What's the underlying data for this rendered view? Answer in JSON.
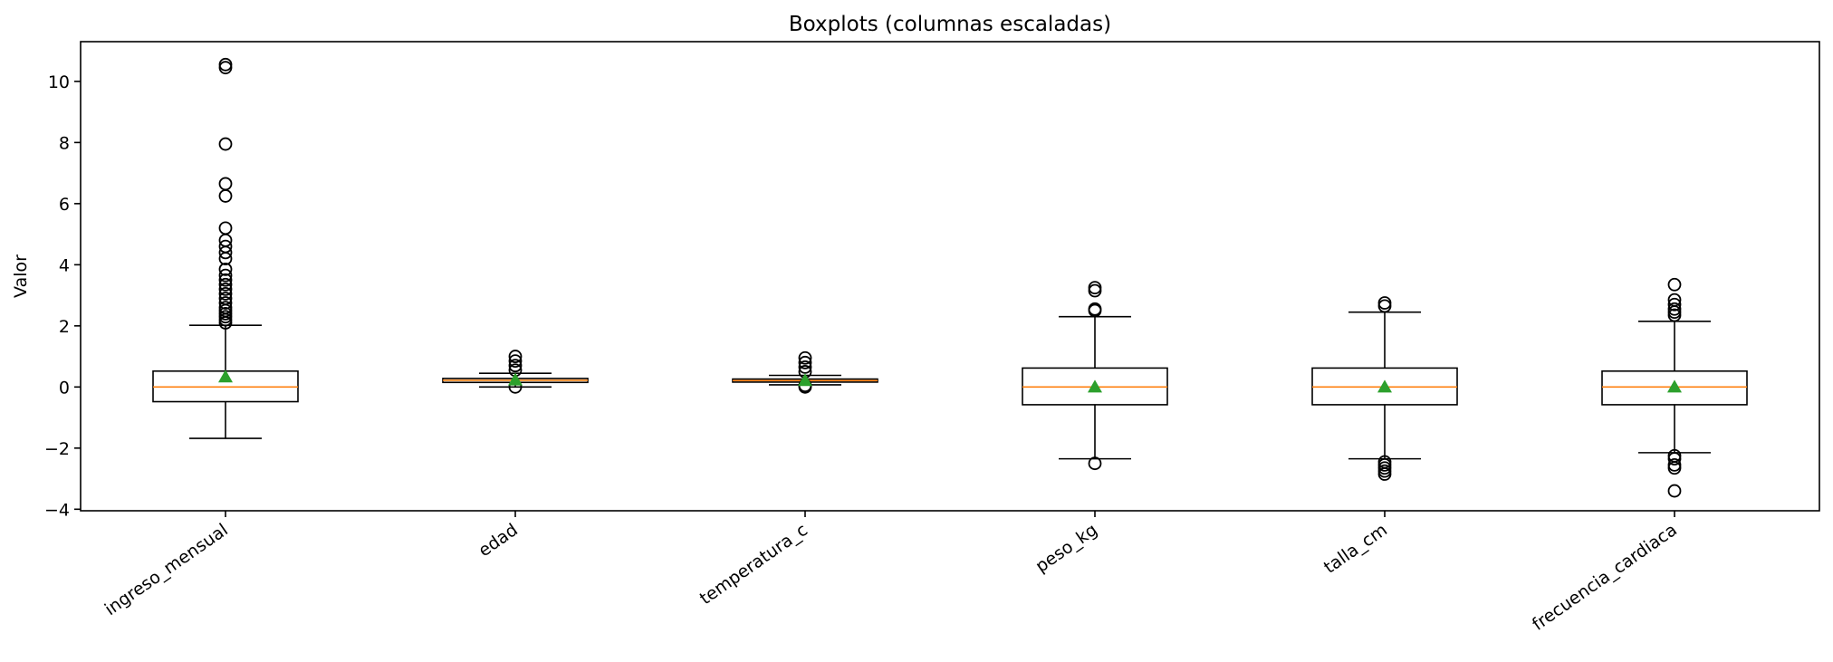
{
  "chart_data": {
    "type": "boxplot",
    "title": "Boxplots (columnas escaladas)",
    "xlabel": "",
    "ylabel": "Valor",
    "ylim": [
      -4.05,
      11.3
    ],
    "yticks": [
      -4,
      -2,
      0,
      2,
      4,
      6,
      8,
      10
    ],
    "ytick_labels": [
      "−4",
      "−2",
      "0",
      "2",
      "4",
      "6",
      "8",
      "10"
    ],
    "categories": [
      "ingreso_mensual",
      "edad",
      "temperatura_c",
      "peso_kg",
      "talla_cm",
      "frecuencia_cardiaca"
    ],
    "grid": false,
    "colors": {
      "box": "#000000",
      "median": "#ff7f0e",
      "mean": "#2ca02c",
      "flier": "#000000"
    },
    "boxes": [
      {
        "name": "ingreso_mensual",
        "whisker_low": -1.68,
        "q1": -0.48,
        "median": 0.0,
        "q3": 0.52,
        "whisker_high": 2.02,
        "mean": 0.33,
        "fliers": [
          2.1,
          2.2,
          2.3,
          2.4,
          2.5,
          2.6,
          2.75,
          2.9,
          3.05,
          3.2,
          3.35,
          3.5,
          3.65,
          3.85,
          4.2,
          4.4,
          4.6,
          4.8,
          5.2,
          6.25,
          6.65,
          7.95,
          10.45,
          10.55
        ]
      },
      {
        "name": "edad",
        "whisker_low": 0.0,
        "q1": 0.15,
        "median": 0.22,
        "q3": 0.28,
        "whisker_high": 0.45,
        "mean": 0.23,
        "fliers": [
          0.0,
          0.55,
          0.7,
          0.85,
          1.0
        ]
      },
      {
        "name": "temperatura_c",
        "whisker_low": 0.07,
        "q1": 0.16,
        "median": 0.21,
        "q3": 0.26,
        "whisker_high": 0.38,
        "mean": 0.21,
        "fliers": [
          0.0,
          0.05,
          0.5,
          0.65,
          0.8,
          0.95
        ]
      },
      {
        "name": "peso_kg",
        "whisker_low": -2.35,
        "q1": -0.58,
        "median": 0.0,
        "q3": 0.62,
        "whisker_high": 2.3,
        "mean": 0.0,
        "fliers": [
          -2.5,
          2.5,
          2.55,
          3.15,
          3.25
        ]
      },
      {
        "name": "talla_cm",
        "whisker_low": -2.35,
        "q1": -0.58,
        "median": 0.0,
        "q3": 0.62,
        "whisker_high": 2.45,
        "mean": 0.0,
        "fliers": [
          -2.45,
          -2.55,
          -2.65,
          -2.75,
          -2.85,
          2.65,
          2.75
        ]
      },
      {
        "name": "frecuencia_cardiaca",
        "whisker_low": -2.15,
        "q1": -0.58,
        "median": 0.0,
        "q3": 0.52,
        "whisker_high": 2.15,
        "mean": 0.0,
        "fliers": [
          -2.25,
          -2.35,
          -2.55,
          -2.65,
          -3.4,
          2.35,
          2.45,
          2.55,
          2.7,
          2.85,
          3.35
        ]
      }
    ]
  }
}
